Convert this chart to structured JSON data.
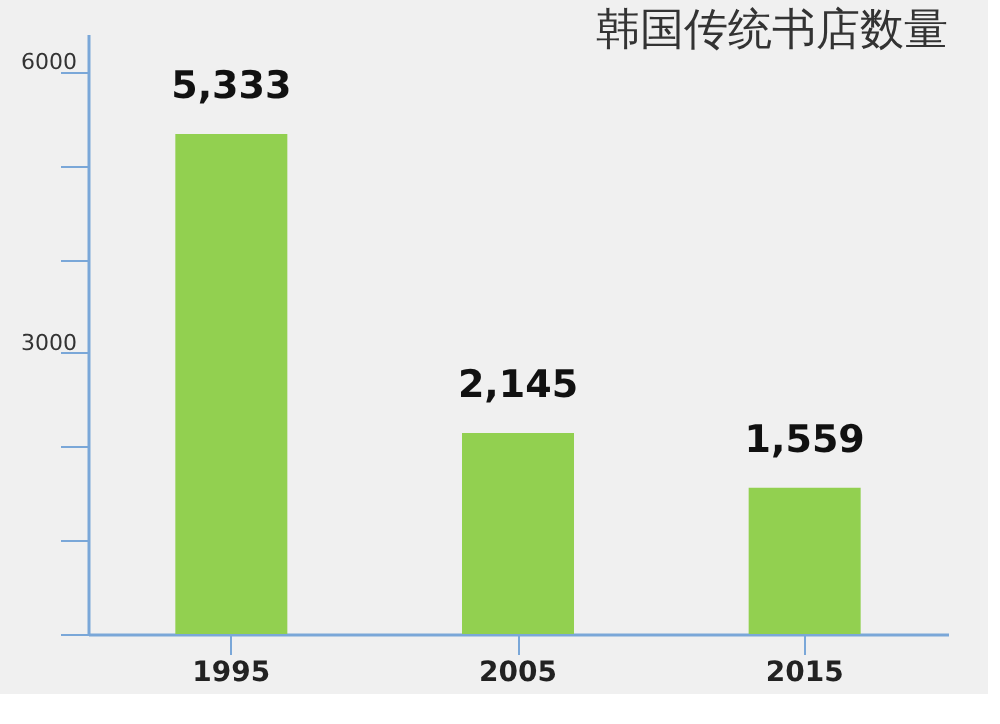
{
  "chart_data": {
    "type": "bar",
    "title": "韩国传统书店数量",
    "categories": [
      "1995",
      "2005",
      "2015"
    ],
    "values": [
      5333,
      2145,
      1559
    ],
    "value_labels": [
      "5,333",
      "2,145",
      "1,559"
    ],
    "color": "#92d050",
    "ylim": [
      0,
      6400
    ],
    "yticks": [
      {
        "value": 0,
        "label": null
      },
      {
        "value": 1000,
        "label": null
      },
      {
        "value": 2000,
        "label": null
      },
      3000,
      {
        "value": 4000,
        "label": null
      },
      {
        "value": 5000,
        "label": null
      },
      6000
    ],
    "grid": false
  }
}
